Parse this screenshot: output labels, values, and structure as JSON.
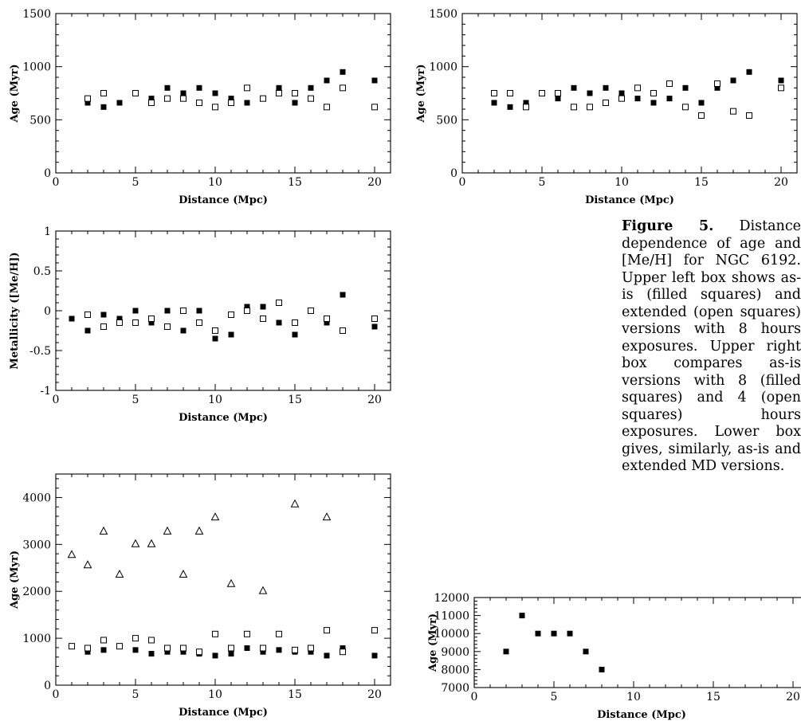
{
  "caption": {
    "label": "Figure 5.",
    "text": "Distance dependence of age and [Me/H] for NGC 6192. Upper left box shows as-is (filled squares) and extended (open squares) versions with 8 hours exposures. Upper right box compares as-is versions with 8 (filled squares) and 4 (open squares) hours exposures. Lower box gives, similarly, as-is and extended MD versions."
  },
  "chart_data": [
    {
      "id": "upper-left",
      "type": "scatter",
      "xlabel": "Distance (Mpc)",
      "ylabel": "Age (Myr)",
      "xlim": [
        0,
        21
      ],
      "ylim": [
        0,
        1500
      ],
      "xticks": [
        0,
        5,
        10,
        15,
        20
      ],
      "yticks": [
        0,
        500,
        1000,
        1500
      ],
      "series": [
        {
          "marker": "filled-square",
          "x": [
            2,
            3,
            4,
            5,
            6,
            7,
            8,
            9,
            10,
            11,
            12,
            13,
            14,
            15,
            16,
            17,
            18,
            20
          ],
          "y": [
            660,
            620,
            660,
            750,
            700,
            800,
            750,
            800,
            750,
            700,
            660,
            700,
            800,
            660,
            800,
            870,
            950,
            870
          ]
        },
        {
          "marker": "open-square",
          "x": [
            2,
            3,
            5,
            6,
            7,
            8,
            9,
            10,
            11,
            12,
            13,
            14,
            15,
            16,
            17,
            18,
            20
          ],
          "y": [
            700,
            750,
            750,
            660,
            700,
            700,
            660,
            620,
            660,
            800,
            700,
            750,
            750,
            700,
            620,
            800,
            620
          ]
        }
      ]
    },
    {
      "id": "upper-right",
      "type": "scatter",
      "xlabel": "Distance (Mpc)",
      "ylabel": "Age (Myr)",
      "xlim": [
        0,
        21
      ],
      "ylim": [
        0,
        1500
      ],
      "xticks": [
        0,
        5,
        10,
        15,
        20
      ],
      "yticks": [
        0,
        500,
        1000,
        1500
      ],
      "series": [
        {
          "marker": "filled-square",
          "x": [
            2,
            3,
            4,
            5,
            6,
            7,
            8,
            9,
            10,
            11,
            12,
            13,
            14,
            15,
            16,
            17,
            18,
            20
          ],
          "y": [
            660,
            620,
            660,
            750,
            700,
            800,
            750,
            800,
            750,
            700,
            660,
            700,
            800,
            660,
            800,
            870,
            950,
            870
          ]
        },
        {
          "marker": "open-square",
          "x": [
            2,
            3,
            4,
            5,
            6,
            7,
            8,
            9,
            10,
            11,
            12,
            13,
            14,
            15,
            16,
            17,
            18,
            20
          ],
          "y": [
            750,
            750,
            620,
            750,
            750,
            620,
            620,
            660,
            700,
            800,
            750,
            840,
            620,
            540,
            840,
            580,
            540,
            800
          ]
        }
      ]
    },
    {
      "id": "metallicity",
      "type": "scatter",
      "xlabel": "Distance (Mpc)",
      "ylabel": "Metallicity ([Me/H])",
      "xlim": [
        0,
        21
      ],
      "ylim": [
        -1,
        1
      ],
      "xticks": [
        0,
        5,
        10,
        15,
        20
      ],
      "yticks": [
        -1,
        -0.5,
        0,
        0.5,
        1
      ],
      "series": [
        {
          "marker": "filled-square",
          "x": [
            1,
            2,
            3,
            4,
            5,
            6,
            7,
            8,
            9,
            10,
            11,
            12,
            13,
            14,
            15,
            16,
            17,
            18,
            20
          ],
          "y": [
            -0.1,
            -0.25,
            -0.05,
            -0.1,
            0,
            -0.15,
            0,
            -0.25,
            0,
            -0.35,
            -0.3,
            0.05,
            0.05,
            -0.15,
            -0.3,
            0,
            -0.15,
            0.2,
            -0.2
          ]
        },
        {
          "marker": "open-square",
          "x": [
            2,
            3,
            4,
            5,
            6,
            7,
            8,
            9,
            10,
            11,
            12,
            13,
            14,
            15,
            16,
            17,
            18,
            20
          ],
          "y": [
            -0.05,
            -0.2,
            -0.15,
            -0.15,
            -0.1,
            -0.2,
            0,
            -0.15,
            -0.25,
            -0.05,
            0,
            -0.1,
            0.1,
            -0.15,
            0,
            -0.1,
            -0.25,
            -0.1
          ]
        }
      ]
    },
    {
      "id": "lower-left",
      "type": "scatter",
      "xlabel": "Distance (Mpc)",
      "ylabel": "Age (Myr)",
      "xlim": [
        0,
        21
      ],
      "ylim": [
        0,
        4500
      ],
      "xticks": [
        0,
        5,
        10,
        15,
        20
      ],
      "yticks": [
        0,
        1000,
        2000,
        3000,
        4000
      ],
      "series": [
        {
          "marker": "triangle",
          "x": [
            1,
            2,
            3,
            4,
            5,
            6,
            7,
            8,
            9,
            10,
            11,
            13,
            15,
            17
          ],
          "y": [
            2780,
            2560,
            3280,
            2360,
            3010,
            3010,
            3280,
            2360,
            3280,
            3580,
            2160,
            2010,
            3860,
            3580
          ]
        },
        {
          "marker": "filled-square",
          "x": [
            2,
            3,
            5,
            6,
            7,
            8,
            9,
            10,
            11,
            12,
            13,
            14,
            15,
            16,
            17,
            18,
            20
          ],
          "y": [
            710,
            750,
            750,
            670,
            710,
            710,
            670,
            630,
            670,
            790,
            710,
            750,
            710,
            710,
            630,
            790,
            630
          ]
        },
        {
          "marker": "open-square",
          "x": [
            1,
            2,
            3,
            4,
            5,
            6,
            7,
            8,
            9,
            10,
            11,
            12,
            13,
            14,
            15,
            16,
            17,
            18,
            20
          ],
          "y": [
            830,
            790,
            960,
            830,
            1000,
            960,
            790,
            790,
            710,
            1090,
            790,
            1090,
            790,
            1090,
            750,
            790,
            1170,
            710,
            1170
          ]
        }
      ]
    },
    {
      "id": "lower-right",
      "type": "scatter",
      "xlabel": "Distance (Mpc)",
      "ylabel": "Age (Myr)",
      "xlim": [
        0,
        21
      ],
      "ylim": [
        7000,
        12000
      ],
      "xticks": [
        0,
        5,
        10,
        15,
        20
      ],
      "yticks": [
        7000,
        8000,
        9000,
        10000,
        11000,
        12000
      ],
      "series": [
        {
          "marker": "filled-square",
          "x": [
            2,
            3,
            4,
            5,
            6,
            7,
            8
          ],
          "y": [
            9000,
            11000,
            10000,
            10000,
            10000,
            9000,
            8000
          ]
        }
      ]
    }
  ]
}
